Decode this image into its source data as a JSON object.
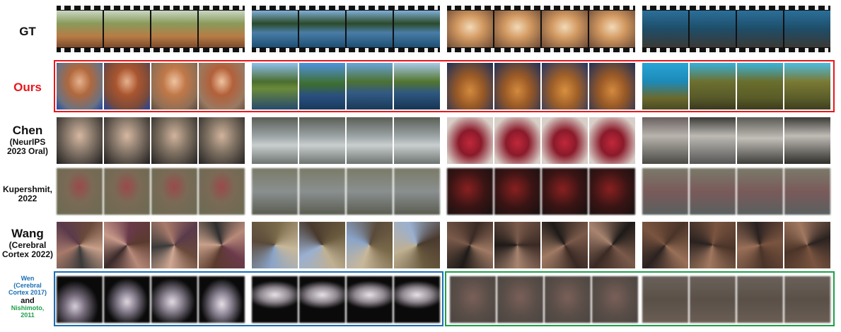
{
  "rows": [
    {
      "label": "GT",
      "sub": []
    },
    {
      "label": "Ours",
      "sub": []
    },
    {
      "label": "Chen",
      "sub": [
        "(NeurIPS",
        "2023 Oral)"
      ]
    },
    {
      "label": "Kupershmit,",
      "sub": [
        "2022"
      ]
    },
    {
      "label": "Wang",
      "sub": [
        "(Cerebral",
        "Cortex 2022)"
      ]
    }
  ],
  "last_label": {
    "wen": [
      "Wen",
      "(Cerebral",
      "Cortex 2017)"
    ],
    "and": "and",
    "nishimoto": [
      "Nishimoto,",
      "2011"
    ]
  },
  "colors": {
    "ours_label": "#e8161b",
    "wen_label": "#1a6fb5",
    "nishimoto_label": "#1ea04a",
    "ours_box": "#e8161b",
    "wen_box": "#1a6fb5",
    "nishimoto_box": "#1ea04a"
  }
}
